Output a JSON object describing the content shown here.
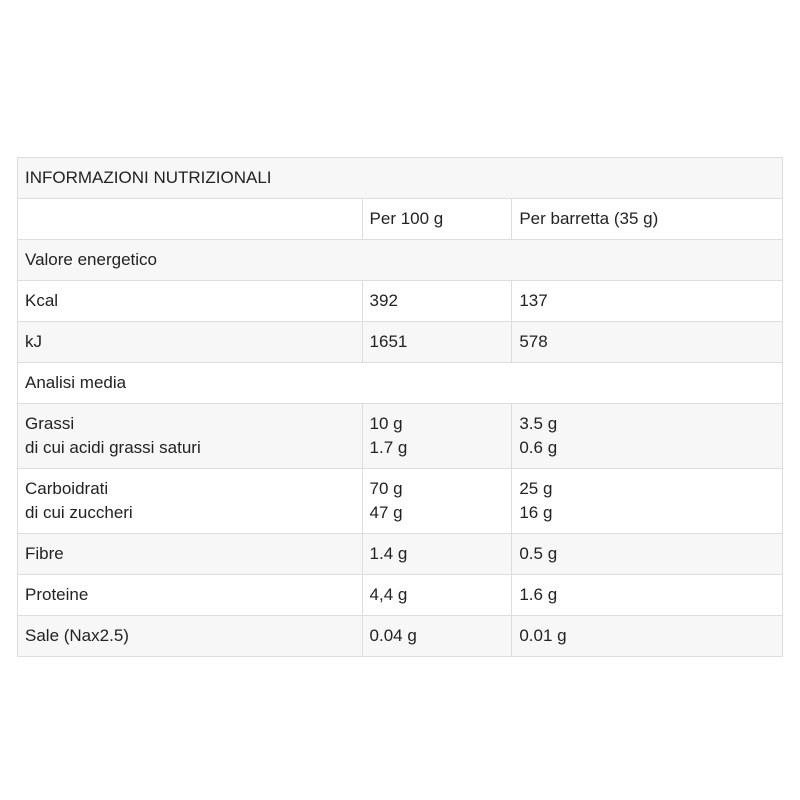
{
  "title": "INFORMAZIONI NUTRIZIONALI",
  "columns": [
    "Per 100 g",
    "Per barretta (35 g)"
  ],
  "rows": [
    {
      "section": "Valore energetico"
    },
    {
      "cells": [
        [
          "Kcal"
        ],
        [
          "392"
        ],
        [
          "137"
        ]
      ]
    },
    {
      "cells": [
        [
          "kJ"
        ],
        [
          "1651"
        ],
        [
          "578"
        ]
      ]
    },
    {
      "section": "Analisi media"
    },
    {
      "cells": [
        [
          "Grassi",
          "di cui acidi grassi saturi"
        ],
        [
          "10 g",
          "1.7 g"
        ],
        [
          "3.5 g",
          "0.6 g"
        ]
      ]
    },
    {
      "cells": [
        [
          "Carboidrati",
          "di cui zuccheri"
        ],
        [
          "70 g",
          "47 g"
        ],
        [
          "25 g",
          "16 g"
        ]
      ]
    },
    {
      "cells": [
        [
          "Fibre"
        ],
        [
          "1.4 g"
        ],
        [
          "0.5 g"
        ]
      ]
    },
    {
      "cells": [
        [
          "Proteine"
        ],
        [
          "4,4 g"
        ],
        [
          "1.6 g"
        ]
      ]
    },
    {
      "cells": [
        [
          "Sale (Nax2.5)"
        ],
        [
          "0.04 g"
        ],
        [
          "0.01 g"
        ]
      ]
    }
  ]
}
